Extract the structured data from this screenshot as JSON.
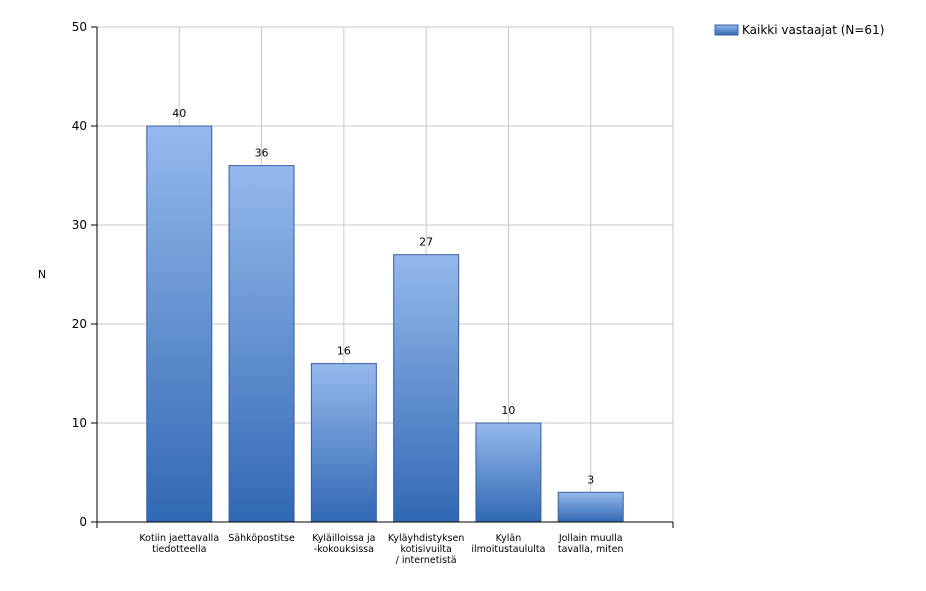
{
  "chart_data": {
    "type": "bar",
    "title": "",
    "ylabel": "N",
    "xlabel": "",
    "ylim": [
      0,
      50
    ],
    "yticks": [
      0,
      10,
      20,
      30,
      40,
      50
    ],
    "grid": true,
    "legend_position": "top-right",
    "categories": [
      [
        "Kotiin jaettavalla",
        "tiedotteella"
      ],
      [
        "Sähköpostitse"
      ],
      [
        "Kyläilloissa ja",
        "-kokouksissa"
      ],
      [
        "Kyläyhdistyksen",
        "kotisivuilta",
        "/ internetistä"
      ],
      [
        "Kylän",
        "ilmoitustaululta"
      ],
      [
        "Jollain muulla",
        "tavalla, miten"
      ]
    ],
    "series": [
      {
        "name": "Kaikki vastaajat (N=61)",
        "values": [
          40,
          36,
          16,
          27,
          10,
          3
        ],
        "color_top": "#95b9ec",
        "color_bottom": "#3168b4",
        "border": "#3a5f99"
      }
    ]
  }
}
